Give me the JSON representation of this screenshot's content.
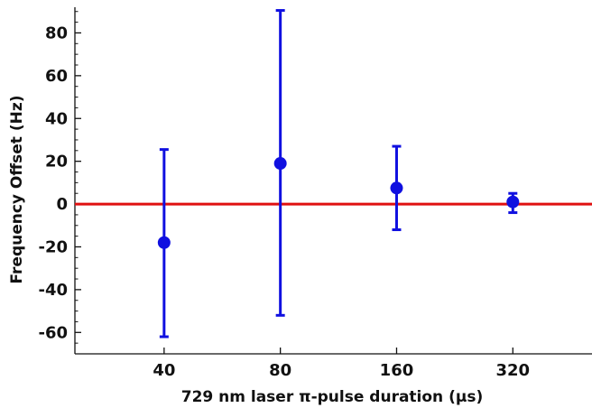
{
  "chart_data": {
    "type": "scatter",
    "title": "",
    "xlabel": "729 nm laser π-pulse duration (μs)",
    "ylabel": "Frequency Offset (Hz)",
    "x_scale": "log2",
    "x_ticks": [
      40,
      80,
      160,
      320
    ],
    "x_tick_labels": [
      "40",
      "80",
      "160",
      "320"
    ],
    "xlim": [
      23.5,
      513
    ],
    "y_ticks": [
      80,
      60,
      40,
      20,
      0,
      -20,
      -40,
      -60
    ],
    "y_tick_labels": [
      "80",
      "60",
      "40",
      "20",
      "0",
      "-20",
      "-40",
      "-60"
    ],
    "ylim": [
      -70,
      92
    ],
    "grid": false,
    "series": [
      {
        "color": "#1010e0",
        "points": [
          {
            "x": 40,
            "y": -18,
            "yerr_low": -62,
            "yerr_high": 25.5
          },
          {
            "x": 80,
            "y": 19,
            "yerr_low": -52,
            "yerr_high": 90.5
          },
          {
            "x": 160,
            "y": 7.5,
            "yerr_low": -12,
            "yerr_high": 27
          },
          {
            "x": 320,
            "y": 1,
            "yerr_low": -4,
            "yerr_high": 5
          }
        ]
      }
    ],
    "reference_line": {
      "y": 0,
      "color": "#e01010"
    }
  }
}
